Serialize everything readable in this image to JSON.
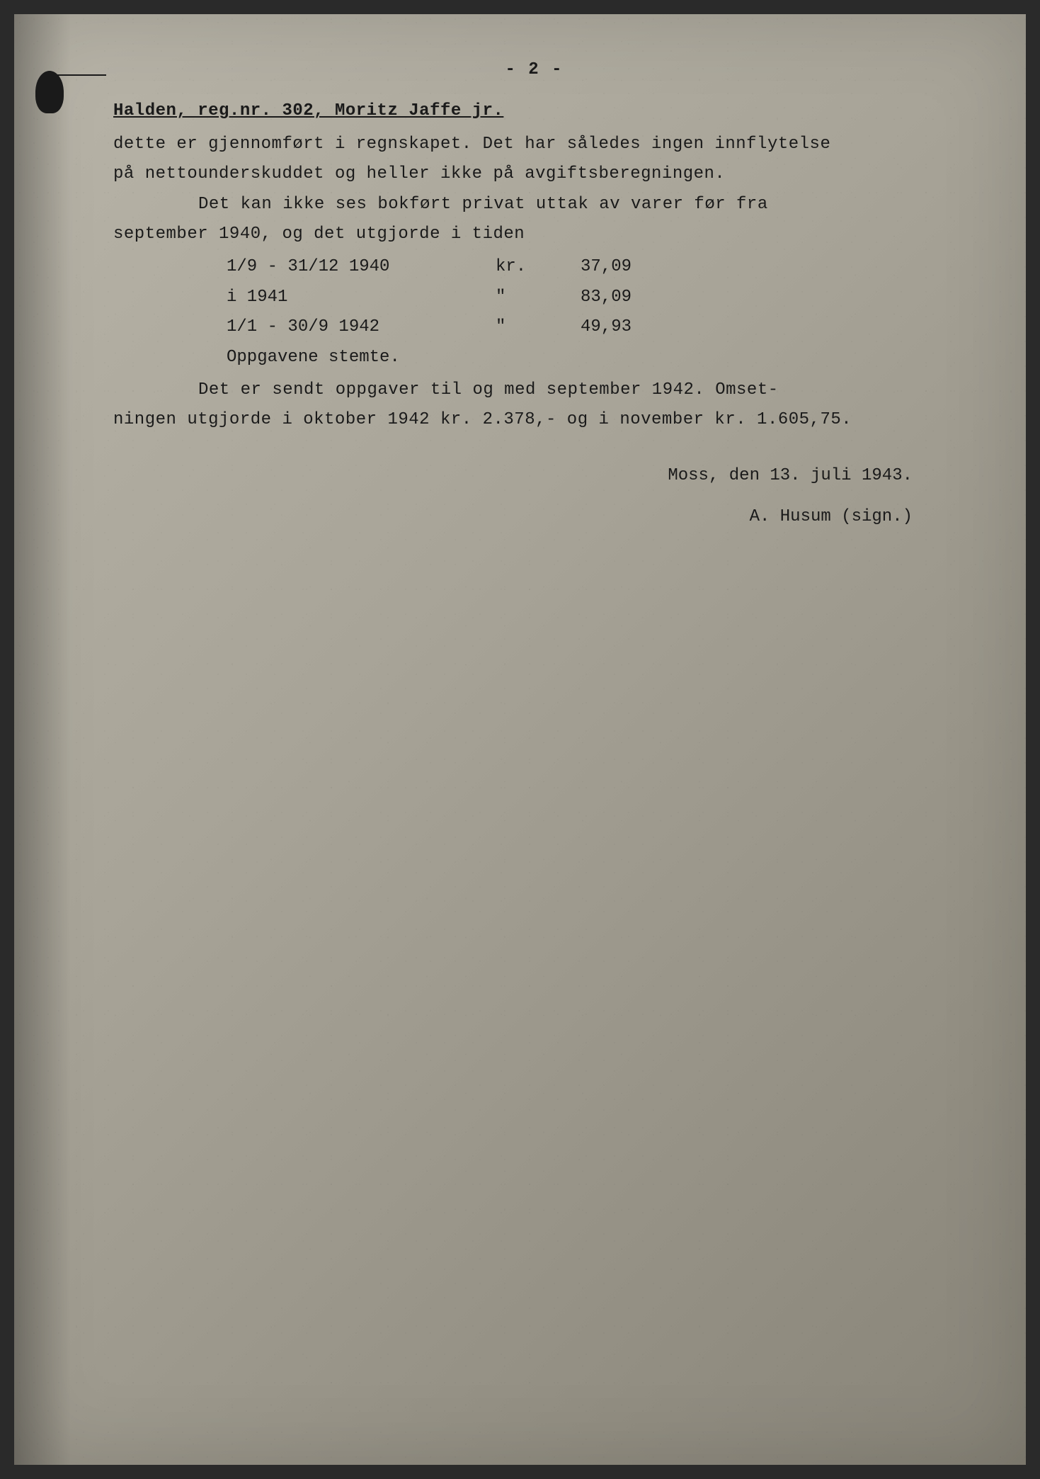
{
  "page_number": "- 2 -",
  "header": "Halden, reg.nr. 302, Moritz Jaffe jr.",
  "paragraphs": {
    "p1_line1": "dette er gjennomført i regnskapet. Det har således ingen innflytelse",
    "p1_line2": "på nettounderskuddet og heller ikke på avgiftsberegningen.",
    "p2_line1": "Det kan ikke ses bokført privat uttak av varer før fra",
    "p2_line2": "september 1940, og det utgjorde i tiden"
  },
  "table": {
    "rows": [
      {
        "period": "1/9 - 31/12 1940",
        "unit": "kr.",
        "value": "37,09"
      },
      {
        "period": "i 1941",
        "unit": "\"",
        "value": "83,09"
      },
      {
        "period": "1/1 - 30/9 1942",
        "unit": "\"",
        "value": "49,93"
      }
    ],
    "footer": "Oppgavene stemte."
  },
  "paragraphs2": {
    "p3_line1": "Det er sendt oppgaver til og med september 1942. Omset-",
    "p3_line2": "ningen utgjorde i oktober 1942 kr. 2.378,- og i november kr. 1.605,75."
  },
  "signature": {
    "date": "Moss, den 13. juli 1943.",
    "name": "A. Husum (sign.)"
  },
  "style": {
    "background_color": "#a8a498",
    "text_color": "#1a1a1a",
    "font_family": "Courier New",
    "font_size_pt": 18
  }
}
